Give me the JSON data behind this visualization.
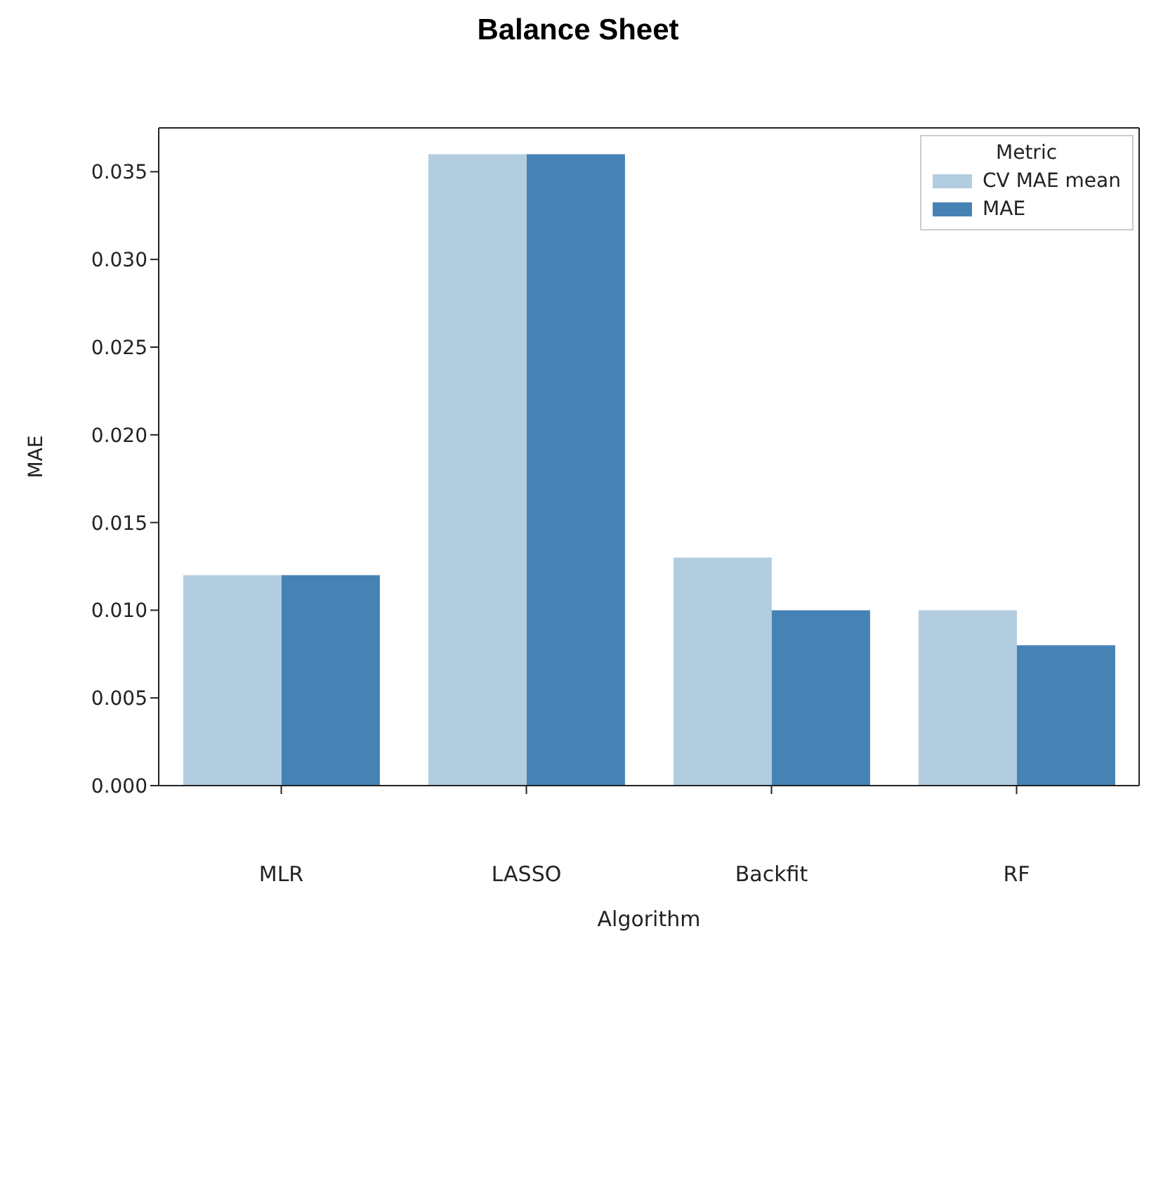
{
  "chart_data": {
    "type": "bar",
    "title": "Balance Sheet",
    "xlabel": "Algorithm",
    "ylabel": "MAE",
    "legend_title": "Metric",
    "legend": "top right",
    "grid": false,
    "categories": [
      "MLR",
      "LASSO",
      "Backfit",
      "RF"
    ],
    "series": [
      {
        "name": "CV MAE mean",
        "color": "#b3cde0",
        "values": [
          0.012,
          0.036,
          0.013,
          0.01
        ]
      },
      {
        "name": "MAE",
        "color": "#4682b4",
        "values": [
          0.012,
          0.036,
          0.01,
          0.008
        ]
      }
    ],
    "ylim": [
      0,
      0.0375
    ],
    "yticks": [
      {
        "value": 0,
        "label": "0.000"
      },
      {
        "value": 0.005,
        "label": "0.005"
      },
      {
        "value": 0.01,
        "label": "0.010"
      },
      {
        "value": 0.015,
        "label": "0.015"
      },
      {
        "value": 0.02,
        "label": "0.020"
      },
      {
        "value": 0.025,
        "label": "0.025"
      },
      {
        "value": 0.03,
        "label": "0.030"
      },
      {
        "value": 0.035,
        "label": "0.035"
      }
    ]
  }
}
